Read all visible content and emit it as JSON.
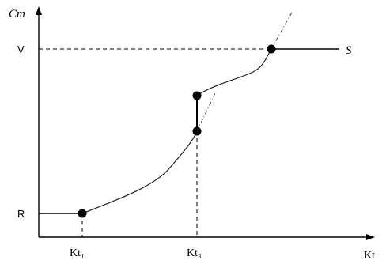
{
  "axes": {
    "y_label": "Cm",
    "x_label": "Kt"
  },
  "levels": {
    "v_label": "V",
    "r_label": "R",
    "s_label": "S"
  },
  "ticks": {
    "k1_label": "Kt₁",
    "k2_label": "Kt₃"
  }
}
